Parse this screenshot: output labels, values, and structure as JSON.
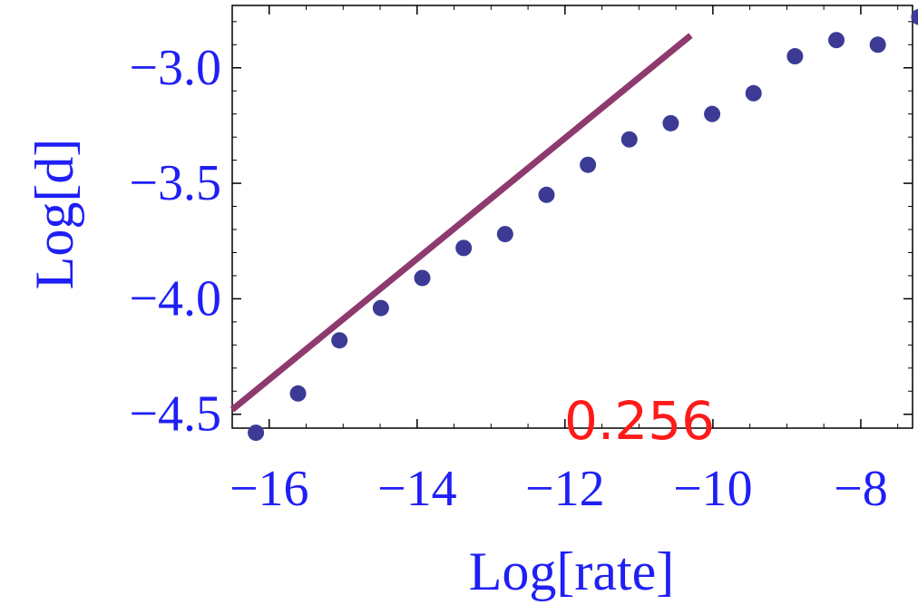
{
  "chart_data": {
    "type": "scatter",
    "title": "",
    "xlabel": "Log[rate]",
    "ylabel": "Log[d]",
    "xlim": [
      -16.5,
      -7.3
    ],
    "ylim": [
      -4.56,
      -2.73
    ],
    "x_ticks": [
      {
        "value": -16,
        "label": "−16"
      },
      {
        "value": -14,
        "label": "−14"
      },
      {
        "value": -12,
        "label": "−12"
      },
      {
        "value": -10,
        "label": "−10"
      },
      {
        "value": -8,
        "label": "−8"
      }
    ],
    "y_ticks": [
      {
        "value": -3.0,
        "label": "−3.0"
      },
      {
        "value": -3.5,
        "label": "−3.5"
      },
      {
        "value": -4.0,
        "label": "−4.0"
      },
      {
        "value": -4.5,
        "label": "−4.5"
      }
    ],
    "series": [
      {
        "points": [
          {
            "x": -16.18,
            "y": -4.58
          },
          {
            "x": -15.61,
            "y": -4.41
          },
          {
            "x": -15.05,
            "y": -4.18
          },
          {
            "x": -14.49,
            "y": -4.04
          },
          {
            "x": -13.93,
            "y": -3.91
          },
          {
            "x": -13.37,
            "y": -3.78
          },
          {
            "x": -12.81,
            "y": -3.72
          },
          {
            "x": -12.25,
            "y": -3.55
          },
          {
            "x": -11.69,
            "y": -3.42
          },
          {
            "x": -11.13,
            "y": -3.31
          },
          {
            "x": -10.57,
            "y": -3.24
          },
          {
            "x": -10.01,
            "y": -3.2
          },
          {
            "x": -9.45,
            "y": -3.11
          },
          {
            "x": -8.89,
            "y": -2.95
          },
          {
            "x": -8.33,
            "y": -2.88
          },
          {
            "x": -7.77,
            "y": -2.9
          },
          {
            "x": -7.21,
            "y": -2.78
          }
        ]
      }
    ],
    "fit_line": {
      "x1": -16.5,
      "y1": -4.48,
      "x2": -10.3,
      "y2": -2.86
    },
    "colors": {
      "points": "#3b3b96",
      "fit_line": "#8e3a6e",
      "axis_text": "#1f1ff5",
      "annotation": "#ff1a1a",
      "frame": "#000000"
    },
    "annotation": "0.256",
    "grid": false,
    "legend": "none"
  }
}
